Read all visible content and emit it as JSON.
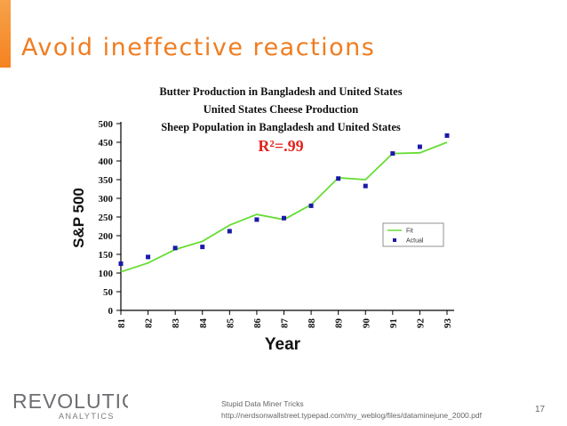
{
  "slide": {
    "title": "Avoid ineffective reactions",
    "page_number": "17",
    "footer_line1": "Stupid Data Miner Tricks",
    "footer_line2": "http://nerdsonwallstreet.typepad.com/my_weblog/files/dataminejune_2000.pdf",
    "logo": {
      "text": "REVOLUTION",
      "sub": "ANALYTICS"
    },
    "accent_color": "#f58220"
  },
  "chart_data": {
    "type": "line",
    "title_lines": [
      "Butter Production in Bangladesh and United States",
      "United States Cheese Production",
      "Sheep Population in Bangladesh and United States"
    ],
    "annotation": "R²=.99",
    "xlabel": "Year",
    "ylabel": "S&P 500",
    "categories": [
      "81",
      "82",
      "83",
      "84",
      "85",
      "86",
      "87",
      "88",
      "89",
      "90",
      "91",
      "92",
      "93"
    ],
    "ylim": [
      0,
      500
    ],
    "yticks": [
      0,
      50,
      100,
      150,
      200,
      250,
      300,
      350,
      400,
      450,
      500
    ],
    "grid": false,
    "legend_position": "right",
    "series": [
      {
        "name": "Fit",
        "type": "line",
        "color": "#66dd33",
        "values": [
          103,
          127,
          163,
          185,
          228,
          257,
          243,
          283,
          355,
          350,
          420,
          422,
          450
        ]
      },
      {
        "name": "Actual",
        "type": "scatter",
        "color": "#1a1aa8",
        "values": [
          125,
          143,
          167,
          170,
          212,
          243,
          247,
          280,
          353,
          333,
          420,
          438,
          468
        ]
      }
    ]
  }
}
